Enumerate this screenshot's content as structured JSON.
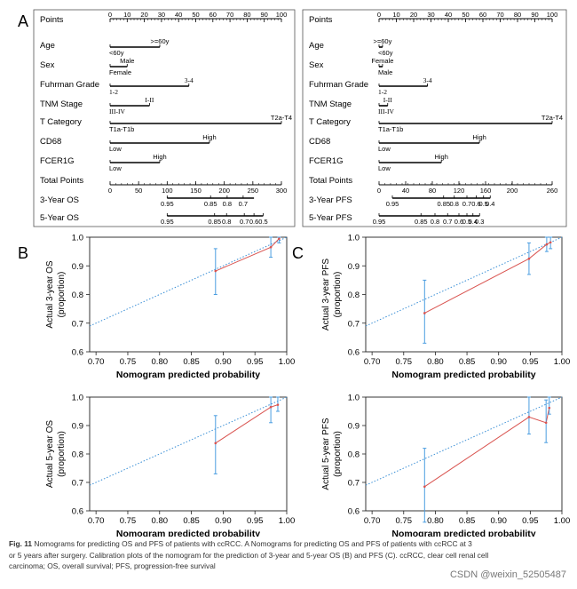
{
  "figure": {
    "panel_labels": [
      "A",
      "B",
      "C"
    ],
    "caption_label": "Fig. 11",
    "caption_lines": [
      "Nomograms for predicting OS and PFS of patients with ccRCC. A Nomograms for predicting OS and PFS of patients with ccRCC at 3",
      "or 5 years after surgery. Calibration plots of the nomogram for the prediction of 3-year and 5-year OS (B) and PFS (C). ccRCC, clear cell renal cell",
      "carcinoma; OS, overall survival; PFS, progression-free survival"
    ],
    "watermark": "CSDN @weixin_52505487"
  },
  "chart_data": [
    {
      "type": "nomogram",
      "panel": "A",
      "points_axis": {
        "label": "Points",
        "min": 0,
        "max": 100,
        "ticks": [
          0,
          10,
          20,
          30,
          40,
          50,
          60,
          70,
          80,
          90,
          100
        ]
      },
      "variables": [
        {
          "label": "Age",
          "levels": [
            {
              "text": "<60y",
              "points": 0
            },
            {
              "text": ">=60y",
              "points": 29
            }
          ]
        },
        {
          "label": "Sex",
          "levels": [
            {
              "text": "Female",
              "points": 0
            },
            {
              "text": "Male",
              "points": 10
            }
          ]
        },
        {
          "label": "Fuhrman Grade",
          "levels": [
            {
              "text": "1-2",
              "points": 0
            },
            {
              "text": "3-4",
              "points": 46
            }
          ]
        },
        {
          "label": "TNM Stage",
          "levels": [
            {
              "text": "III-IV",
              "points": 0
            },
            {
              "text": "I-II",
              "points": 23
            }
          ]
        },
        {
          "label": "T Category",
          "levels": [
            {
              "text": "T1a-T1b",
              "points": 0
            },
            {
              "text": "T2a-T4",
              "points": 100
            }
          ]
        },
        {
          "label": "CD68",
          "levels": [
            {
              "text": "Low",
              "points": 0
            },
            {
              "text": "High",
              "points": 58
            }
          ]
        },
        {
          "label": "FCER1G",
          "levels": [
            {
              "text": "Low",
              "points": 0
            },
            {
              "text": "High",
              "points": 29
            }
          ]
        }
      ],
      "total_points": {
        "label": "Total Points",
        "min": 0,
        "max": 300,
        "ticks": [
          0,
          50,
          100,
          150,
          200,
          250,
          300
        ]
      },
      "outcomes": [
        {
          "label": "3-Year OS",
          "marks": [
            {
              "text": "0.95",
              "total": 100
            },
            {
              "text": "0.85",
              "total": 176
            },
            {
              "text": "0.8",
              "total": 205
            },
            {
              "text": "0.7",
              "total": 233
            }
          ],
          "span": [
            100,
            252
          ]
        },
        {
          "label": "5-Year OS",
          "marks": [
            {
              "text": "0.95",
              "total": 100
            },
            {
              "text": "0.85",
              "total": 183
            },
            {
              "text": "0.8",
              "total": 204
            },
            {
              "text": "0.7",
              "total": 235
            },
            {
              "text": "0.6",
              "total": 252
            },
            {
              "text": "0.5",
              "total": 268
            }
          ],
          "span": [
            100,
            268
          ]
        }
      ]
    },
    {
      "type": "nomogram",
      "panel": "A",
      "points_axis": {
        "label": "Points",
        "min": 0,
        "max": 100,
        "ticks": [
          0,
          10,
          20,
          30,
          40,
          50,
          60,
          70,
          80,
          90,
          100
        ]
      },
      "variables": [
        {
          "label": "Age",
          "levels": [
            {
              "text": "<60y",
              "points": 0
            },
            {
              "text": ">=60y",
              "points": 2
            }
          ]
        },
        {
          "label": "Sex",
          "levels": [
            {
              "text": "Male",
              "points": 0
            },
            {
              "text": "Female",
              "points": 2
            }
          ]
        },
        {
          "label": "Fuhrman Grade",
          "levels": [
            {
              "text": "1-2",
              "points": 0
            },
            {
              "text": "3-4",
              "points": 28
            }
          ]
        },
        {
          "label": "TNM Stage",
          "levels": [
            {
              "text": "III-IV",
              "points": 0
            },
            {
              "text": "I-II",
              "points": 5
            }
          ]
        },
        {
          "label": "T Category",
          "levels": [
            {
              "text": "T1a-T1b",
              "points": 0
            },
            {
              "text": "T2a-T4",
              "points": 100
            }
          ]
        },
        {
          "label": "CD68",
          "levels": [
            {
              "text": "Low",
              "points": 0
            },
            {
              "text": "High",
              "points": 58
            }
          ]
        },
        {
          "label": "FCER1G",
          "levels": [
            {
              "text": "Low",
              "points": 0
            },
            {
              "text": "High",
              "points": 36
            }
          ]
        }
      ],
      "total_points": {
        "label": "Total Points",
        "min": 0,
        "max": 260,
        "ticks": [
          0,
          40,
          80,
          120,
          160,
          200,
          260
        ]
      },
      "outcomes": [
        {
          "label": "3-Year PFS",
          "marks": [
            {
              "text": "0.95",
              "total": 20
            },
            {
              "text": "0.85",
              "total": 97
            },
            {
              "text": "0.8",
              "total": 113
            },
            {
              "text": "0.7",
              "total": 132
            },
            {
              "text": "0.6",
              "total": 146
            },
            {
              "text": "0.5",
              "total": 157
            },
            {
              "text": "0.4",
              "total": 167
            }
          ],
          "span": [
            20,
            167
          ]
        },
        {
          "label": "5-Year PFS",
          "marks": [
            {
              "text": "0.95",
              "total": 0
            },
            {
              "text": "0.85",
              "total": 63
            },
            {
              "text": "0.8",
              "total": 84
            },
            {
              "text": "0.7",
              "total": 103
            },
            {
              "text": "0.6",
              "total": 120
            },
            {
              "text": "0.5",
              "total": 132
            },
            {
              "text": "0.4",
              "total": 141
            },
            {
              "text": "0.3",
              "total": 151
            }
          ],
          "span": [
            0,
            151
          ]
        }
      ]
    },
    {
      "type": "scatter",
      "panel": "B",
      "xlabel": "Nomogram predicted probability",
      "ylabel": "Actual 3-year OS (proportion)",
      "xlim": [
        0.69,
        1.0
      ],
      "ylim": [
        0.6,
        1.0
      ],
      "xticks": [
        0.7,
        0.75,
        0.8,
        0.85,
        0.9,
        0.95,
        1.0
      ],
      "yticks": [
        0.6,
        0.7,
        0.8,
        0.9,
        1.0
      ],
      "points": [
        {
          "x": 0.888,
          "y": 0.882,
          "lo": 0.8,
          "hi": 0.96
        },
        {
          "x": 0.975,
          "y": 0.965,
          "lo": 0.93,
          "hi": 1.0
        },
        {
          "x": 0.988,
          "y": 0.995,
          "lo": 0.98,
          "hi": 1.0
        }
      ],
      "diagonal": true
    },
    {
      "type": "scatter",
      "panel": "C",
      "xlabel": "Nomogram predicted probability",
      "ylabel": "Actual 3-year PFS (proportion)",
      "xlim": [
        0.69,
        1.0
      ],
      "ylim": [
        0.6,
        1.0
      ],
      "xticks": [
        0.7,
        0.75,
        0.8,
        0.85,
        0.9,
        0.95,
        1.0
      ],
      "yticks": [
        0.6,
        0.7,
        0.8,
        0.9,
        1.0
      ],
      "points": [
        {
          "x": 0.783,
          "y": 0.735,
          "lo": 0.63,
          "hi": 0.85
        },
        {
          "x": 0.948,
          "y": 0.925,
          "lo": 0.87,
          "hi": 0.98
        },
        {
          "x": 0.976,
          "y": 0.975,
          "lo": 0.95,
          "hi": 1.0
        },
        {
          "x": 0.982,
          "y": 0.982,
          "lo": 0.96,
          "hi": 1.0
        }
      ],
      "diagonal": true
    },
    {
      "type": "scatter",
      "panel": "B",
      "xlabel": "Nomogram predicted probability",
      "ylabel": "Actual 5-year OS (proportion)",
      "xlim": [
        0.69,
        1.0
      ],
      "ylim": [
        0.6,
        1.0
      ],
      "xticks": [
        0.7,
        0.75,
        0.8,
        0.85,
        0.9,
        0.95,
        1.0
      ],
      "yticks": [
        0.6,
        0.7,
        0.8,
        0.9,
        1.0
      ],
      "points": [
        {
          "x": 0.888,
          "y": 0.838,
          "lo": 0.73,
          "hi": 0.935
        },
        {
          "x": 0.975,
          "y": 0.965,
          "lo": 0.91,
          "hi": 1.0
        },
        {
          "x": 0.986,
          "y": 0.973,
          "lo": 0.95,
          "hi": 1.0
        }
      ],
      "diagonal": true
    },
    {
      "type": "scatter",
      "panel": "C",
      "xlabel": "Nomogram predicted probability",
      "ylabel": "Actual 5-year PFS (proportion)",
      "xlim": [
        0.69,
        1.0
      ],
      "ylim": [
        0.6,
        1.0
      ],
      "xticks": [
        0.7,
        0.75,
        0.8,
        0.85,
        0.9,
        0.95,
        1.0
      ],
      "yticks": [
        0.6,
        0.7,
        0.8,
        0.9,
        1.0
      ],
      "points": [
        {
          "x": 0.783,
          "y": 0.685,
          "lo": 0.56,
          "hi": 0.82
        },
        {
          "x": 0.948,
          "y": 0.93,
          "lo": 0.87,
          "hi": 1.0
        },
        {
          "x": 0.975,
          "y": 0.91,
          "lo": 0.84,
          "hi": 0.99
        },
        {
          "x": 0.98,
          "y": 0.962,
          "lo": 0.94,
          "hi": 1.0
        }
      ],
      "diagonal": true
    }
  ],
  "colors": {
    "fit": "#d9534f",
    "ideal": "#3a8fd6",
    "errbar": "#4a9de0",
    "axis": "#000000"
  }
}
